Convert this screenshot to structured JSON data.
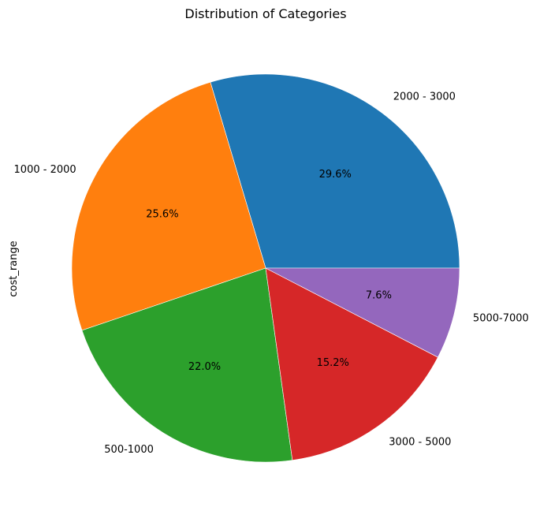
{
  "chart_data": {
    "type": "pie",
    "title": "Distribution of Categories",
    "ylabel": "cost_range",
    "categories": [
      "2000 - 3000",
      "1000 - 2000",
      "500-1000",
      "3000 - 5000",
      "5000-7000"
    ],
    "values": [
      29.6,
      25.6,
      22.0,
      15.2,
      7.6
    ],
    "percent_labels": [
      "29.6%",
      "25.6%",
      "22.0%",
      "15.2%",
      "7.6%"
    ],
    "colors": [
      "#1f77b4",
      "#ff7f0e",
      "#2ca02c",
      "#d62728",
      "#9467bd"
    ],
    "start_angle": 0,
    "direction": "counterclockwise"
  }
}
